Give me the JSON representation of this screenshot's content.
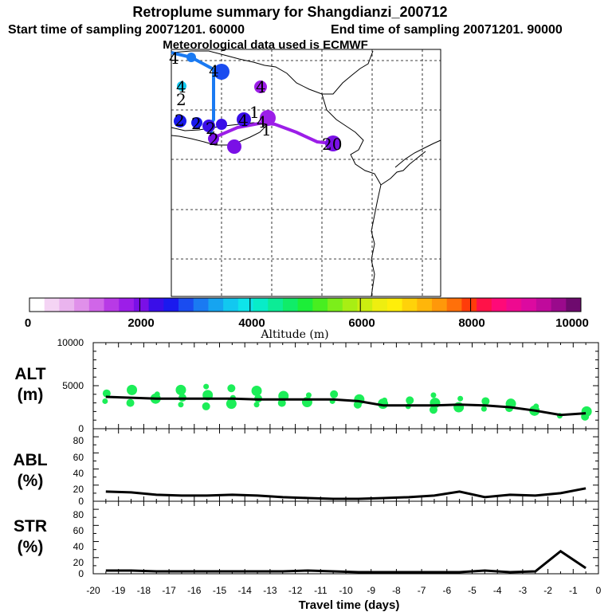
{
  "header": {
    "title": "Retroplume summary for Shangdianzi_200712",
    "start_label": "Start time of sampling 20071201. 60000",
    "end_label": "End time of sampling 20071201. 90000",
    "met_label": "Meteorological data used is ECMWF"
  },
  "colorbar": {
    "label": "Altitude (m)",
    "ticks": [
      "0",
      "2000",
      "4000",
      "6000",
      "8000",
      "10000"
    ],
    "colors": [
      "#ffffff",
      "#f4d4f4",
      "#eab4ee",
      "#e090ea",
      "#d066e8",
      "#b83ae6",
      "#9c1ee8",
      "#7a10e6",
      "#3a0ee8",
      "#1a1aee",
      "#1a4cf0",
      "#1a7af2",
      "#16a4f0",
      "#12c8f0",
      "#0ee4ea",
      "#08ecc8",
      "#0cec96",
      "#10ec68",
      "#1cee38",
      "#48ee20",
      "#7cee1a",
      "#a8ee14",
      "#ccee10",
      "#eeee10",
      "#ffee0a",
      "#ffd20a",
      "#ffb60a",
      "#ff980a",
      "#ff700a",
      "#ff3c0a",
      "#ff1248",
      "#ff0a78",
      "#ee0a90",
      "#dc0aa0",
      "#c00a9c",
      "#9a0a8c",
      "#6e0a6e"
    ]
  },
  "map": {
    "labels": [
      "4",
      "4",
      "4",
      "2",
      "4",
      "4",
      "1",
      "2",
      "1",
      "4",
      "2",
      "2",
      "2",
      "20"
    ]
  },
  "chart_data": [
    {
      "type": "line",
      "panel": "ALT",
      "ylabel_line1": "ALT",
      "ylabel_line2": "(m)",
      "ylim": [
        0,
        10000
      ],
      "yticks": [
        "10000",
        "5000",
        "0"
      ],
      "x": [
        -19.5,
        -18.5,
        -17.5,
        -16.5,
        -15.5,
        -14.5,
        -13.5,
        -12.5,
        -11.5,
        -10.5,
        -9.5,
        -8.5,
        -7.5,
        -6.5,
        -5.5,
        -4.5,
        -3.5,
        -2.5,
        -1.5,
        -0.5
      ],
      "values": [
        3700,
        3600,
        3500,
        3500,
        3500,
        3500,
        3400,
        3400,
        3400,
        3400,
        3200,
        2700,
        2700,
        2700,
        2800,
        2700,
        2500,
        2100,
        1600,
        1800
      ],
      "scatter": [
        {
          "x": -19.5,
          "y": [
            3200,
            4100
          ]
        },
        {
          "x": -18.5,
          "y": [
            3000,
            4500
          ]
        },
        {
          "x": -17.5,
          "y": [
            3500,
            4000
          ]
        },
        {
          "x": -16.5,
          "y": [
            2800,
            3600,
            4500
          ]
        },
        {
          "x": -15.5,
          "y": [
            2600,
            3900,
            4900
          ]
        },
        {
          "x": -14.5,
          "y": [
            2900,
            3600,
            4700
          ]
        },
        {
          "x": -13.5,
          "y": [
            2800,
            3500,
            4400
          ]
        },
        {
          "x": -12.5,
          "y": [
            3000,
            3800
          ]
        },
        {
          "x": -11.5,
          "y": [
            3100,
            3900
          ]
        },
        {
          "x": -10.5,
          "y": [
            3200,
            4000
          ]
        },
        {
          "x": -9.5,
          "y": [
            2800,
            3400
          ]
        },
        {
          "x": -8.5,
          "y": [
            2900,
            3300
          ]
        },
        {
          "x": -7.5,
          "y": [
            2600,
            3300
          ]
        },
        {
          "x": -6.5,
          "y": [
            2200,
            3000,
            3900
          ]
        },
        {
          "x": -5.5,
          "y": [
            2500,
            3500
          ]
        },
        {
          "x": -4.5,
          "y": [
            2300,
            3200
          ]
        },
        {
          "x": -3.5,
          "y": [
            2400,
            2900
          ]
        },
        {
          "x": -2.5,
          "y": [
            2100,
            2600
          ]
        },
        {
          "x": -1.5,
          "y": [
            1500
          ]
        },
        {
          "x": -0.5,
          "y": [
            1400,
            2000
          ]
        }
      ]
    },
    {
      "type": "line",
      "panel": "ABL",
      "ylabel_line1": "ABL",
      "ylabel_line2": "(%)",
      "ylim": [
        0,
        90
      ],
      "yticks": [
        "80",
        "60",
        "40",
        "20",
        "0"
      ],
      "x": [
        -19.5,
        -18.5,
        -17.5,
        -16.5,
        -15.5,
        -14.5,
        -13.5,
        -12.5,
        -11.5,
        -10.5,
        -9.5,
        -8.5,
        -7.5,
        -6.5,
        -5.5,
        -4.5,
        -3.5,
        -2.5,
        -1.5,
        -0.5
      ],
      "values": [
        12,
        11,
        8,
        7,
        7,
        8,
        7,
        5,
        4,
        3,
        3,
        4,
        5,
        7,
        12,
        5,
        8,
        7,
        10,
        16
      ]
    },
    {
      "type": "line",
      "panel": "STR",
      "ylabel_line1": "STR",
      "ylabel_line2": "(%)",
      "ylim": [
        0,
        90
      ],
      "yticks": [
        "80",
        "60",
        "40",
        "20",
        "0"
      ],
      "xlabel": "Travel time (days)",
      "xlim": [
        -20,
        0
      ],
      "xticks": [
        "-20",
        "-19",
        "-18",
        "-17",
        "-16",
        "-15",
        "-14",
        "-13",
        "-12",
        "-11",
        "-10",
        "-9",
        "-8",
        "-7",
        "-6",
        "-5",
        "-4",
        "-3",
        "-2",
        "-1",
        "0"
      ],
      "x": [
        -19.5,
        -18.5,
        -17.5,
        -16.5,
        -15.5,
        -14.5,
        -13.5,
        -12.5,
        -11.5,
        -10.5,
        -9.5,
        -8.5,
        -7.5,
        -6.5,
        -5.5,
        -4.5,
        -3.5,
        -2.5,
        -1.5,
        -0.5
      ],
      "values": [
        4,
        4,
        3,
        3,
        3,
        3,
        3,
        3,
        4,
        3,
        2,
        2,
        2,
        2,
        2,
        4,
        2,
        3,
        28,
        7
      ]
    }
  ]
}
